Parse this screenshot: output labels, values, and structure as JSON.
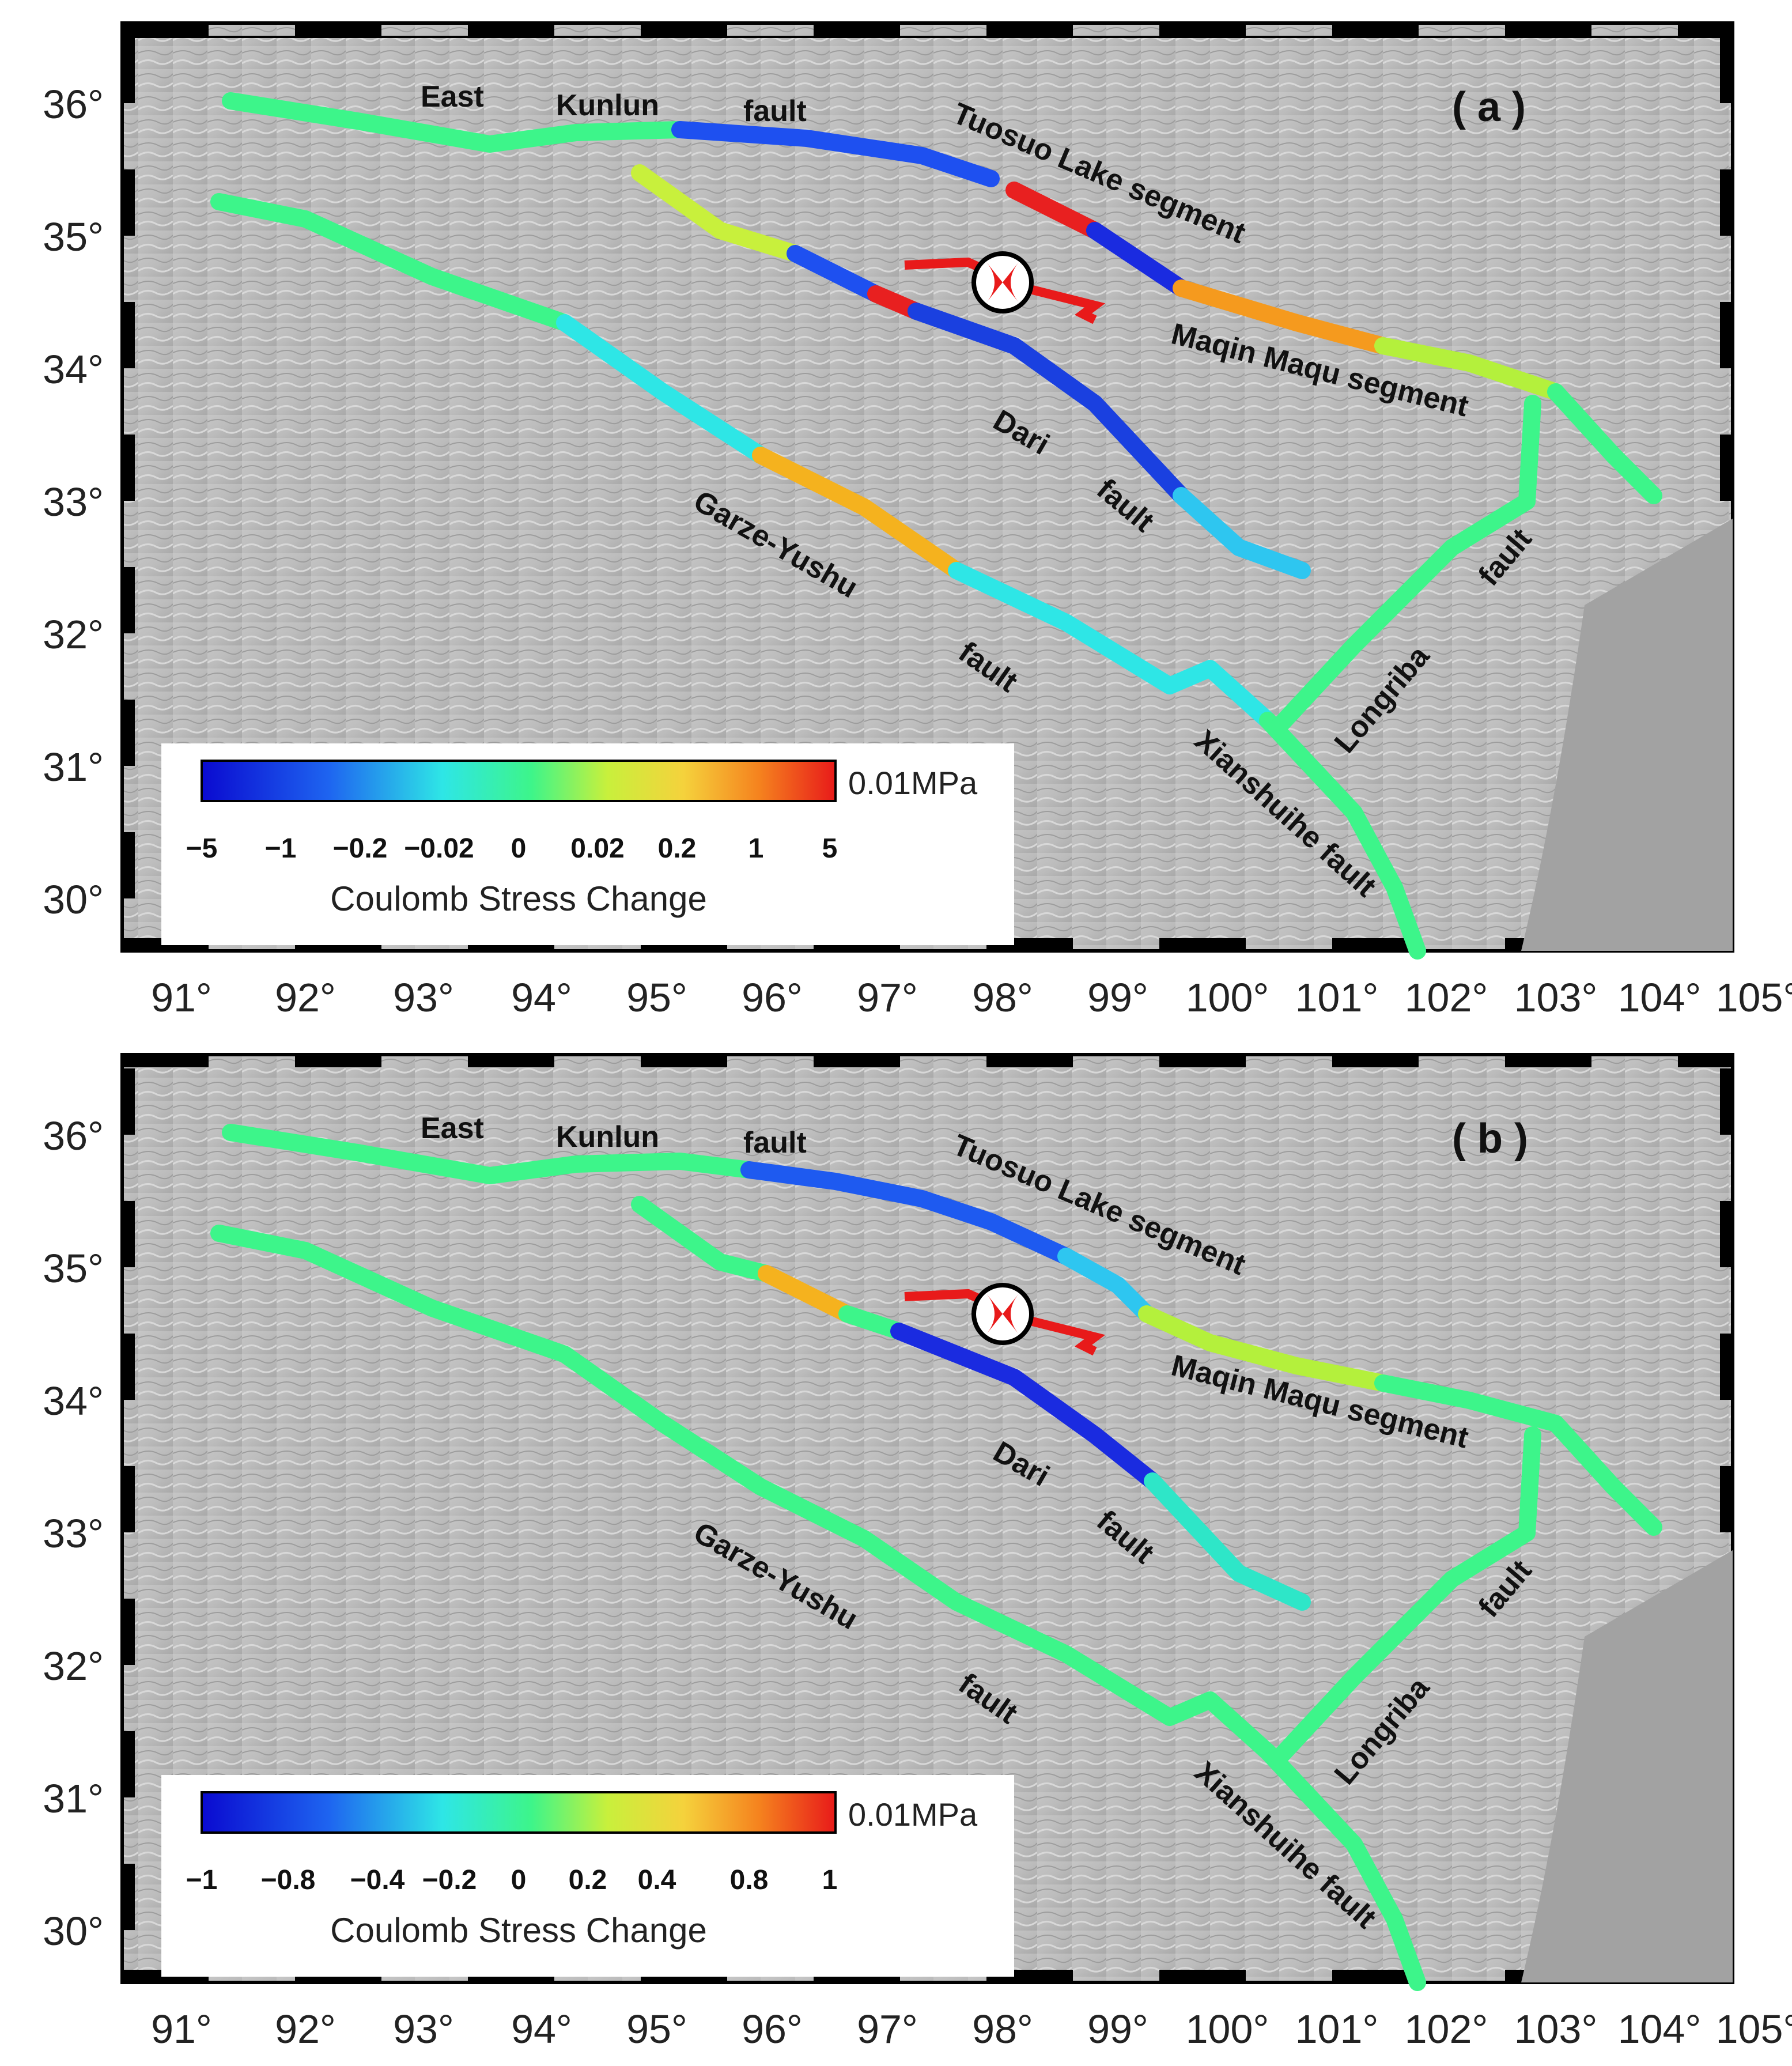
{
  "axes": {
    "lon_ticks": [
      "91°",
      "92°",
      "93°",
      "94°",
      "95°",
      "96°",
      "97°",
      "98°",
      "99°",
      "100°",
      "101°",
      "102°",
      "103°",
      "104°",
      "105°"
    ],
    "lat_ticks": [
      "36°",
      "35°",
      "34°",
      "33°",
      "32°",
      "31°",
      "30°"
    ]
  },
  "colors": {
    "blue": "#1a2be0",
    "cyan": "#2ee6e6",
    "green": "#3df58a",
    "yellow": "#f5e23d",
    "orange": "#f59a1e",
    "red": "#e82020",
    "frame": "#000000",
    "relief": "#b9b9b9"
  },
  "panels": [
    {
      "id": "a",
      "panel_label": "( a )",
      "fault_labels": {
        "east": "East",
        "kunlun": "Kunlun",
        "fault_ek": "fault",
        "tuosuo": "Tuosuo Lake segment",
        "maqin": "Maqin Maqu segment",
        "dari": "Dari",
        "fault_dari": "fault",
        "garze": "Garze-Yushu",
        "fault_garze": "fault",
        "longriba": "Longriba",
        "fault_longriba": "fault",
        "xianshuihe": "Xianshuihe fault"
      },
      "colorbar": {
        "unit": "0.01MPa",
        "title": "Coulomb Stress Change",
        "ticks": [
          "−5",
          "−1",
          "−0.2",
          "−0.02",
          "0",
          "0.02",
          "0.2",
          "1",
          "5"
        ]
      }
    },
    {
      "id": "b",
      "panel_label": "( b )",
      "fault_labels": {
        "east": "East",
        "kunlun": "Kunlun",
        "fault_ek": "fault",
        "tuosuo": "Tuosuo Lake segment",
        "maqin": "Maqin Maqu segment",
        "dari": "Dari",
        "fault_dari": "fault",
        "garze": "Garze-Yushu",
        "fault_garze": "fault",
        "longriba": "Longriba",
        "fault_longriba": "fault",
        "xianshuihe": "Xianshuihe fault"
      },
      "colorbar": {
        "unit": "0.01MPa",
        "title": "Coulomb Stress Change",
        "ticks": [
          "−1",
          "−0.8",
          "−0.4",
          "−0.2",
          "0",
          "0.2",
          "0.4",
          "0.8",
          "1"
        ]
      }
    }
  ]
}
